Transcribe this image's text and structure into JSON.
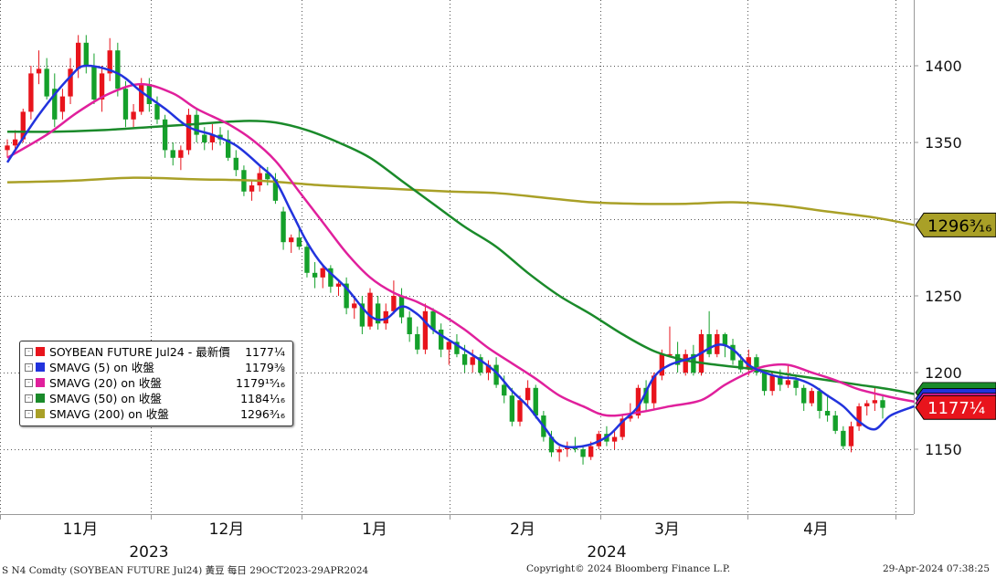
{
  "chart_data": {
    "type": "candlestick",
    "instrument": "SOYBEAN FUTURE Jul24",
    "y_ticks": [
      1150,
      1200,
      1250,
      1300,
      1350,
      1400
    ],
    "y_tick_labels": [
      "1150",
      "1200",
      "1250",
      "1300",
      "1350",
      "1400"
    ],
    "ylim": [
      1120,
      1430
    ],
    "month_labels": [
      "11月",
      "12月",
      "1月",
      "2月",
      "3月",
      "4月"
    ],
    "year_labels": [
      "2023",
      "2024"
    ],
    "grid": true,
    "candles": [
      {
        "o": 1345,
        "h": 1352,
        "l": 1340,
        "c": 1348
      },
      {
        "o": 1348,
        "h": 1358,
        "l": 1345,
        "c": 1352
      },
      {
        "o": 1352,
        "h": 1372,
        "l": 1350,
        "c": 1370
      },
      {
        "o": 1370,
        "h": 1400,
        "l": 1365,
        "c": 1395
      },
      {
        "o": 1395,
        "h": 1410,
        "l": 1388,
        "c": 1398
      },
      {
        "o": 1398,
        "h": 1405,
        "l": 1378,
        "c": 1380
      },
      {
        "o": 1385,
        "h": 1395,
        "l": 1360,
        "c": 1365
      },
      {
        "o": 1370,
        "h": 1385,
        "l": 1365,
        "c": 1380
      },
      {
        "o": 1380,
        "h": 1405,
        "l": 1375,
        "c": 1398
      },
      {
        "o": 1398,
        "h": 1420,
        "l": 1392,
        "c": 1415
      },
      {
        "o": 1415,
        "h": 1420,
        "l": 1395,
        "c": 1400
      },
      {
        "o": 1400,
        "h": 1408,
        "l": 1375,
        "c": 1378
      },
      {
        "o": 1378,
        "h": 1400,
        "l": 1370,
        "c": 1395
      },
      {
        "o": 1395,
        "h": 1418,
        "l": 1390,
        "c": 1410
      },
      {
        "o": 1410,
        "h": 1415,
        "l": 1380,
        "c": 1385
      },
      {
        "o": 1385,
        "h": 1390,
        "l": 1360,
        "c": 1365
      },
      {
        "o": 1365,
        "h": 1375,
        "l": 1360,
        "c": 1370
      },
      {
        "o": 1370,
        "h": 1392,
        "l": 1368,
        "c": 1388
      },
      {
        "o": 1388,
        "h": 1392,
        "l": 1370,
        "c": 1375
      },
      {
        "o": 1375,
        "h": 1380,
        "l": 1362,
        "c": 1365
      },
      {
        "o": 1365,
        "h": 1368,
        "l": 1340,
        "c": 1345
      },
      {
        "o": 1345,
        "h": 1350,
        "l": 1335,
        "c": 1340
      },
      {
        "o": 1340,
        "h": 1348,
        "l": 1332,
        "c": 1345
      },
      {
        "o": 1345,
        "h": 1372,
        "l": 1342,
        "c": 1368
      },
      {
        "o": 1368,
        "h": 1372,
        "l": 1350,
        "c": 1355
      },
      {
        "o": 1355,
        "h": 1360,
        "l": 1345,
        "c": 1350
      },
      {
        "o": 1350,
        "h": 1362,
        "l": 1345,
        "c": 1355
      },
      {
        "o": 1355,
        "h": 1360,
        "l": 1348,
        "c": 1352
      },
      {
        "o": 1352,
        "h": 1358,
        "l": 1338,
        "c": 1340
      },
      {
        "o": 1340,
        "h": 1345,
        "l": 1328,
        "c": 1332
      },
      {
        "o": 1332,
        "h": 1335,
        "l": 1315,
        "c": 1318
      },
      {
        "o": 1318,
        "h": 1325,
        "l": 1312,
        "c": 1322
      },
      {
        "o": 1322,
        "h": 1335,
        "l": 1318,
        "c": 1330
      },
      {
        "o": 1330,
        "h": 1334,
        "l": 1322,
        "c": 1326
      },
      {
        "o": 1326,
        "h": 1330,
        "l": 1310,
        "c": 1312
      },
      {
        "o": 1305,
        "h": 1308,
        "l": 1280,
        "c": 1285
      },
      {
        "o": 1285,
        "h": 1290,
        "l": 1278,
        "c": 1288
      },
      {
        "o": 1288,
        "h": 1295,
        "l": 1280,
        "c": 1282
      },
      {
        "o": 1282,
        "h": 1285,
        "l": 1262,
        "c": 1265
      },
      {
        "o": 1265,
        "h": 1272,
        "l": 1255,
        "c": 1262
      },
      {
        "o": 1262,
        "h": 1270,
        "l": 1255,
        "c": 1268
      },
      {
        "o": 1268,
        "h": 1270,
        "l": 1252,
        "c": 1256
      },
      {
        "o": 1256,
        "h": 1260,
        "l": 1250,
        "c": 1258
      },
      {
        "o": 1258,
        "h": 1262,
        "l": 1238,
        "c": 1242
      },
      {
        "o": 1242,
        "h": 1248,
        "l": 1235,
        "c": 1245
      },
      {
        "o": 1245,
        "h": 1250,
        "l": 1225,
        "c": 1230
      },
      {
        "o": 1230,
        "h": 1255,
        "l": 1228,
        "c": 1252
      },
      {
        "o": 1245,
        "h": 1250,
        "l": 1228,
        "c": 1232
      },
      {
        "o": 1232,
        "h": 1245,
        "l": 1228,
        "c": 1240
      },
      {
        "o": 1240,
        "h": 1260,
        "l": 1238,
        "c": 1250
      },
      {
        "o": 1250,
        "h": 1255,
        "l": 1232,
        "c": 1236
      },
      {
        "o": 1236,
        "h": 1240,
        "l": 1220,
        "c": 1225
      },
      {
        "o": 1225,
        "h": 1230,
        "l": 1212,
        "c": 1215
      },
      {
        "o": 1215,
        "h": 1245,
        "l": 1212,
        "c": 1240
      },
      {
        "o": 1240,
        "h": 1242,
        "l": 1225,
        "c": 1228
      },
      {
        "o": 1228,
        "h": 1232,
        "l": 1210,
        "c": 1215
      },
      {
        "o": 1215,
        "h": 1222,
        "l": 1205,
        "c": 1220
      },
      {
        "o": 1220,
        "h": 1225,
        "l": 1210,
        "c": 1212
      },
      {
        "o": 1212,
        "h": 1218,
        "l": 1200,
        "c": 1205
      },
      {
        "o": 1205,
        "h": 1215,
        "l": 1200,
        "c": 1210
      },
      {
        "o": 1210,
        "h": 1212,
        "l": 1198,
        "c": 1200
      },
      {
        "o": 1200,
        "h": 1208,
        "l": 1195,
        "c": 1205
      },
      {
        "o": 1205,
        "h": 1210,
        "l": 1190,
        "c": 1192
      },
      {
        "o": 1192,
        "h": 1198,
        "l": 1180,
        "c": 1185
      },
      {
        "o": 1185,
        "h": 1190,
        "l": 1165,
        "c": 1168
      },
      {
        "o": 1168,
        "h": 1185,
        "l": 1165,
        "c": 1182
      },
      {
        "o": 1182,
        "h": 1195,
        "l": 1178,
        "c": 1190
      },
      {
        "o": 1190,
        "h": 1192,
        "l": 1170,
        "c": 1172
      },
      {
        "o": 1172,
        "h": 1175,
        "l": 1155,
        "c": 1158
      },
      {
        "o": 1158,
        "h": 1162,
        "l": 1145,
        "c": 1148
      },
      {
        "o": 1148,
        "h": 1152,
        "l": 1142,
        "c": 1150
      },
      {
        "o": 1150,
        "h": 1155,
        "l": 1145,
        "c": 1152
      },
      {
        "o": 1152,
        "h": 1158,
        "l": 1148,
        "c": 1150
      },
      {
        "o": 1150,
        "h": 1152,
        "l": 1140,
        "c": 1145
      },
      {
        "o": 1145,
        "h": 1155,
        "l": 1143,
        "c": 1152
      },
      {
        "o": 1152,
        "h": 1162,
        "l": 1150,
        "c": 1160
      },
      {
        "o": 1160,
        "h": 1165,
        "l": 1152,
        "c": 1155
      },
      {
        "o": 1155,
        "h": 1162,
        "l": 1150,
        "c": 1158
      },
      {
        "o": 1158,
        "h": 1172,
        "l": 1156,
        "c": 1170
      },
      {
        "o": 1170,
        "h": 1180,
        "l": 1168,
        "c": 1172
      },
      {
        "o": 1172,
        "h": 1192,
        "l": 1170,
        "c": 1190
      },
      {
        "o": 1190,
        "h": 1195,
        "l": 1175,
        "c": 1180
      },
      {
        "o": 1180,
        "h": 1200,
        "l": 1176,
        "c": 1198
      },
      {
        "o": 1198,
        "h": 1215,
        "l": 1195,
        "c": 1212
      },
      {
        "o": 1212,
        "h": 1230,
        "l": 1210,
        "c": 1212
      },
      {
        "o": 1212,
        "h": 1220,
        "l": 1200,
        "c": 1205
      },
      {
        "o": 1200,
        "h": 1215,
        "l": 1198,
        "c": 1212
      },
      {
        "o": 1212,
        "h": 1218,
        "l": 1198,
        "c": 1200
      },
      {
        "o": 1200,
        "h": 1228,
        "l": 1198,
        "c": 1225
      },
      {
        "o": 1225,
        "h": 1240,
        "l": 1210,
        "c": 1212
      },
      {
        "o": 1212,
        "h": 1228,
        "l": 1210,
        "c": 1225
      },
      {
        "o": 1225,
        "h": 1226,
        "l": 1210,
        "c": 1218
      },
      {
        "o": 1218,
        "h": 1222,
        "l": 1205,
        "c": 1208
      },
      {
        "o": 1208,
        "h": 1212,
        "l": 1200,
        "c": 1202
      },
      {
        "o": 1202,
        "h": 1215,
        "l": 1198,
        "c": 1210
      },
      {
        "o": 1210,
        "h": 1212,
        "l": 1198,
        "c": 1200
      },
      {
        "o": 1200,
        "h": 1202,
        "l": 1185,
        "c": 1188
      },
      {
        "o": 1188,
        "h": 1200,
        "l": 1185,
        "c": 1198
      },
      {
        "o": 1198,
        "h": 1202,
        "l": 1188,
        "c": 1192
      },
      {
        "o": 1192,
        "h": 1205,
        "l": 1190,
        "c": 1195
      },
      {
        "o": 1195,
        "h": 1198,
        "l": 1185,
        "c": 1190
      },
      {
        "o": 1190,
        "h": 1192,
        "l": 1175,
        "c": 1180
      },
      {
        "o": 1180,
        "h": 1190,
        "l": 1178,
        "c": 1188
      },
      {
        "o": 1188,
        "h": 1190,
        "l": 1170,
        "c": 1175
      },
      {
        "o": 1175,
        "h": 1185,
        "l": 1168,
        "c": 1172
      },
      {
        "o": 1172,
        "h": 1175,
        "l": 1160,
        "c": 1162
      },
      {
        "o": 1162,
        "h": 1165,
        "l": 1150,
        "c": 1152
      },
      {
        "o": 1152,
        "h": 1168,
        "l": 1148,
        "c": 1165
      },
      {
        "o": 1165,
        "h": 1180,
        "l": 1162,
        "c": 1178
      },
      {
        "o": 1178,
        "h": 1182,
        "l": 1172,
        "c": 1180
      },
      {
        "o": 1180,
        "h": 1190,
        "l": 1175,
        "c": 1182
      },
      {
        "o": 1182,
        "h": 1186,
        "l": 1170,
        "c": 1177
      }
    ],
    "series": [
      {
        "name": "SMAVG (5)  on 收盤",
        "color": "#2233dd",
        "points": [
          [
            0,
            1337
          ],
          [
            4,
            1368
          ],
          [
            8,
            1393
          ],
          [
            10,
            1400
          ],
          [
            14,
            1395
          ],
          [
            17,
            1383
          ],
          [
            20,
            1372
          ],
          [
            23,
            1360
          ],
          [
            26,
            1355
          ],
          [
            29,
            1348
          ],
          [
            32,
            1335
          ],
          [
            34,
            1325
          ],
          [
            36,
            1305
          ],
          [
            38,
            1285
          ],
          [
            40,
            1270
          ],
          [
            43,
            1255
          ],
          [
            46,
            1237
          ],
          [
            48,
            1235
          ],
          [
            50,
            1243
          ],
          [
            52,
            1238
          ],
          [
            54,
            1228
          ],
          [
            57,
            1218
          ],
          [
            60,
            1208
          ],
          [
            62,
            1200
          ],
          [
            64,
            1188
          ],
          [
            66,
            1178
          ],
          [
            68,
            1165
          ],
          [
            70,
            1153
          ],
          [
            73,
            1152
          ],
          [
            76,
            1158
          ],
          [
            78,
            1168
          ],
          [
            80,
            1178
          ],
          [
            82,
            1197
          ],
          [
            84,
            1205
          ],
          [
            87,
            1210
          ],
          [
            90,
            1218
          ],
          [
            92,
            1215
          ],
          [
            94,
            1205
          ],
          [
            96,
            1200
          ],
          [
            98,
            1197
          ],
          [
            100,
            1196
          ],
          [
            102,
            1192
          ],
          [
            104,
            1185
          ],
          [
            106,
            1178
          ],
          [
            108,
            1168
          ],
          [
            110,
            1163
          ],
          [
            112,
            1172
          ],
          [
            115,
            1178
          ]
        ]
      },
      {
        "name": "SMAVG (20)  on 收盤",
        "color": "#e0209c",
        "points": [
          [
            0,
            1340
          ],
          [
            5,
            1355
          ],
          [
            9,
            1370
          ],
          [
            13,
            1382
          ],
          [
            17,
            1388
          ],
          [
            21,
            1382
          ],
          [
            24,
            1372
          ],
          [
            28,
            1362
          ],
          [
            31,
            1352
          ],
          [
            34,
            1338
          ],
          [
            37,
            1318
          ],
          [
            40,
            1298
          ],
          [
            43,
            1278
          ],
          [
            46,
            1262
          ],
          [
            49,
            1252
          ],
          [
            52,
            1246
          ],
          [
            55,
            1238
          ],
          [
            58,
            1228
          ],
          [
            61,
            1216
          ],
          [
            64,
            1206
          ],
          [
            67,
            1196
          ],
          [
            70,
            1185
          ],
          [
            73,
            1178
          ],
          [
            76,
            1172
          ],
          [
            80,
            1174
          ],
          [
            84,
            1178
          ],
          [
            88,
            1182
          ],
          [
            91,
            1192
          ],
          [
            94,
            1200
          ],
          [
            96,
            1204
          ],
          [
            99,
            1205
          ],
          [
            102,
            1200
          ],
          [
            105,
            1195
          ],
          [
            108,
            1189
          ],
          [
            112,
            1184
          ],
          [
            115,
            1181
          ]
        ]
      },
      {
        "name": "SMAVG (50)  on 收盤",
        "color": "#1a8a2a",
        "points": [
          [
            0,
            1357
          ],
          [
            6,
            1357
          ],
          [
            12,
            1358
          ],
          [
            18,
            1360
          ],
          [
            24,
            1362
          ],
          [
            30,
            1364
          ],
          [
            34,
            1363
          ],
          [
            38,
            1358
          ],
          [
            42,
            1350
          ],
          [
            46,
            1340
          ],
          [
            50,
            1325
          ],
          [
            54,
            1310
          ],
          [
            58,
            1295
          ],
          [
            62,
            1282
          ],
          [
            66,
            1265
          ],
          [
            70,
            1250
          ],
          [
            74,
            1238
          ],
          [
            78,
            1225
          ],
          [
            82,
            1214
          ],
          [
            86,
            1208
          ],
          [
            90,
            1205
          ],
          [
            95,
            1202
          ],
          [
            100,
            1198
          ],
          [
            104,
            1195
          ],
          [
            108,
            1192
          ],
          [
            112,
            1189
          ],
          [
            115,
            1186
          ]
        ]
      },
      {
        "name": "SMAVG (200)  on 收盤",
        "color": "#a9a027",
        "points": [
          [
            0,
            1324
          ],
          [
            8,
            1325
          ],
          [
            16,
            1327
          ],
          [
            24,
            1326
          ],
          [
            32,
            1325
          ],
          [
            40,
            1322
          ],
          [
            48,
            1320
          ],
          [
            56,
            1318
          ],
          [
            62,
            1317
          ],
          [
            68,
            1314
          ],
          [
            74,
            1311
          ],
          [
            80,
            1310
          ],
          [
            86,
            1310
          ],
          [
            92,
            1311
          ],
          [
            98,
            1309
          ],
          [
            104,
            1305
          ],
          [
            110,
            1301
          ],
          [
            115,
            1296.2
          ]
        ]
      }
    ],
    "candle_up_color": "#e8141c",
    "candle_down_color": "#14a02a"
  },
  "legend": {
    "rows": [
      {
        "label": "SOYBEAN FUTURE Jul24 - 最新價",
        "value": "1177¼",
        "color": "#e8141c"
      },
      {
        "label": "SMAVG (5)  on 收盤",
        "value": "1179⅜",
        "color": "#2233dd"
      },
      {
        "label": "SMAVG (20)  on 收盤",
        "value": "1179¹⁵⁄₁₆",
        "color": "#e0209c"
      },
      {
        "label": "SMAVG (50)  on 收盤",
        "value": "1184¹⁄₁₆",
        "color": "#1a8a2a"
      },
      {
        "label": "SMAVG (200)  on 收盤",
        "value": "1296³⁄₁₆",
        "color": "#a9a027"
      }
    ]
  },
  "price_tags": [
    {
      "text": "1296³⁄₁₆",
      "value": 1296.2,
      "color": "#a9a027",
      "text_color": "#000000"
    },
    {
      "text": "1177¼",
      "value": 1177.25,
      "color": "#e8141c",
      "text_color": "#ffffff"
    }
  ],
  "footer": {
    "left": "S N4 Comdty (SOYBEAN FUTURE    Jul24) 黃豆  每日 29OCT2023-29APR2024",
    "center": "Copyright© 2024 Bloomberg Finance L.P.",
    "right": "29-Apr-2024 07:38:25"
  }
}
